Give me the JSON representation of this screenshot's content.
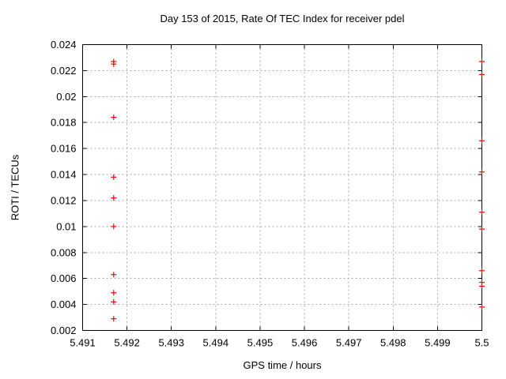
{
  "chart_data": {
    "type": "scatter",
    "title": "Day 153 of 2015, Rate Of TEC Index for receiver pdel",
    "xlabel": "GPS time / hours",
    "ylabel": "ROTI / TECUs",
    "xlim": [
      5.491,
      5.5
    ],
    "ylim": [
      0.002,
      0.024
    ],
    "grid": true,
    "legend": "none",
    "x_ticks": [
      {
        "value": 5.491,
        "label": "5.491"
      },
      {
        "value": 5.492,
        "label": "5.492"
      },
      {
        "value": 5.493,
        "label": "5.493"
      },
      {
        "value": 5.494,
        "label": "5.494"
      },
      {
        "value": 5.495,
        "label": "5.495"
      },
      {
        "value": 5.496,
        "label": "5.496"
      },
      {
        "value": 5.497,
        "label": "5.497"
      },
      {
        "value": 5.498,
        "label": "5.498"
      },
      {
        "value": 5.499,
        "label": "5.499"
      },
      {
        "value": 5.5,
        "label": "5.5"
      }
    ],
    "y_ticks": [
      {
        "value": 0.002,
        "label": "0.002"
      },
      {
        "value": 0.004,
        "label": "0.004"
      },
      {
        "value": 0.006,
        "label": "0.006"
      },
      {
        "value": 0.008,
        "label": "0.008"
      },
      {
        "value": 0.01,
        "label": "0.01"
      },
      {
        "value": 0.012,
        "label": "0.012"
      },
      {
        "value": 0.014,
        "label": "0.014"
      },
      {
        "value": 0.016,
        "label": "0.016"
      },
      {
        "value": 0.018,
        "label": "0.018"
      },
      {
        "value": 0.02,
        "label": "0.02"
      },
      {
        "value": 0.022,
        "label": "0.022"
      },
      {
        "value": 0.024,
        "label": "0.024"
      }
    ],
    "series": [
      {
        "name": "ROTI",
        "marker": "plus",
        "points": [
          [
            5.4917,
            0.0227
          ],
          [
            5.4917,
            0.0225
          ],
          [
            5.4917,
            0.0184
          ],
          [
            5.4917,
            0.0138
          ],
          [
            5.4917,
            0.0122
          ],
          [
            5.4917,
            0.01
          ],
          [
            5.4917,
            0.0063
          ],
          [
            5.4917,
            0.0049
          ],
          [
            5.4917,
            0.0042
          ],
          [
            5.4917,
            0.0029
          ],
          [
            5.5,
            0.0227
          ],
          [
            5.5,
            0.0217
          ],
          [
            5.5,
            0.0166
          ],
          [
            5.5,
            0.0142
          ],
          [
            5.5,
            0.0111
          ],
          [
            5.5,
            0.0098
          ],
          [
            5.5,
            0.0066
          ],
          [
            5.5,
            0.0057
          ],
          [
            5.5,
            0.0054
          ],
          [
            5.5,
            0.0038
          ]
        ]
      }
    ],
    "colors": {
      "marker": "#ff0000",
      "grid": "#a8a8a8",
      "border": "#000000",
      "background": "#ffffff"
    }
  }
}
